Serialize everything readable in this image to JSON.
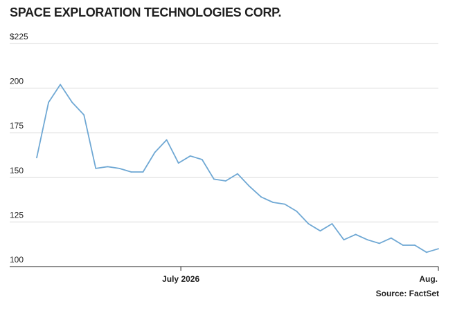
{
  "title": "SPACE EXPLORATION TECHNOLOGIES CORP.",
  "source": "Source: FactSet",
  "chart_data": {
    "type": "line",
    "title": "SPACE EXPLORATION TECHNOLOGIES CORP.",
    "xlabel": "",
    "ylabel": "",
    "y_ticks": [
      {
        "value": 225,
        "label": "$225"
      },
      {
        "value": 200,
        "label": "200"
      },
      {
        "value": 175,
        "label": "175"
      },
      {
        "value": 150,
        "label": "150"
      },
      {
        "value": 125,
        "label": "125"
      },
      {
        "value": 100,
        "label": "100"
      }
    ],
    "ylim": [
      100,
      225
    ],
    "x_ticks": [
      {
        "label": "July 2026",
        "index": 12.2
      },
      {
        "label": "Aug.",
        "index": 34
      }
    ],
    "grid": true,
    "line_color": "#6fa8d4",
    "series": [
      {
        "values": [
          161,
          192,
          202,
          192,
          185,
          155,
          156,
          155,
          153,
          153,
          164,
          171,
          158,
          162,
          160,
          149,
          148,
          152,
          145,
          139,
          136,
          135,
          131,
          124,
          120,
          124,
          115,
          118,
          115,
          113,
          116,
          112,
          112,
          108,
          110
        ]
      }
    ]
  }
}
